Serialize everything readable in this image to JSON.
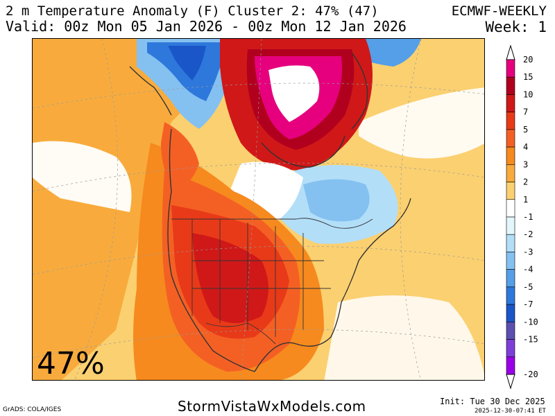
{
  "header": {
    "title": "2 m Temperature Anomaly (F) Cluster 2: 47% (47)",
    "valid": "Valid: 00z Mon 05 Jan 2026 - 00z Mon 12 Jan 2026",
    "model": "ECMWF-WEEKLY",
    "week": "Week: 1"
  },
  "map": {
    "cluster_percent": "47%"
  },
  "legend": {
    "entries": [
      {
        "label": "20",
        "color": "#e6007e"
      },
      {
        "label": "15",
        "color": "#b0001e"
      },
      {
        "label": "10",
        "color": "#d01818"
      },
      {
        "label": "7",
        "color": "#e83a18"
      },
      {
        "label": "5",
        "color": "#f46024"
      },
      {
        "label": "4",
        "color": "#f68a1e"
      },
      {
        "label": "3",
        "color": "#f8ab3c"
      },
      {
        "label": "2",
        "color": "#fbd070"
      },
      {
        "label": "1",
        "color": "#ffffff"
      },
      {
        "label": "-1",
        "color": "#e2f6fb"
      },
      {
        "label": "-2",
        "color": "#b2def8"
      },
      {
        "label": "-3",
        "color": "#84c1f0"
      },
      {
        "label": "-4",
        "color": "#549fe8"
      },
      {
        "label": "-5",
        "color": "#2e78dc"
      },
      {
        "label": "-7",
        "color": "#1a56c8"
      },
      {
        "label": "-10",
        "color": "#5b4fb0"
      },
      {
        "label": "-15",
        "color": "#7e3fd8"
      },
      {
        "label": "-20",
        "color": "#9a00e8"
      }
    ]
  },
  "footer": {
    "grads": "GrADS: COLA/IGES",
    "site": "StormVistaWxModels.com",
    "init": "Init: Tue 30 Dec 2025",
    "stamp": "2025-12-30-07:41 ET"
  }
}
